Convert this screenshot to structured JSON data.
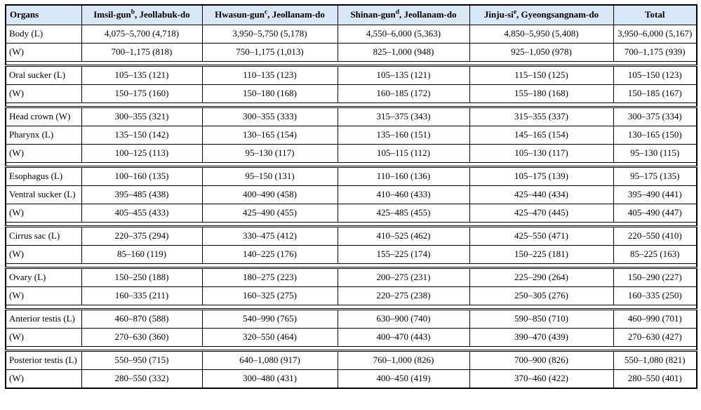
{
  "colors": {
    "header_bg": "#d9e7f6",
    "border": "#000000",
    "text": "#000000"
  },
  "table": {
    "header": {
      "organs": "Organs",
      "columns": [
        {
          "name": "Imsil-gun",
          "sup": "b",
          "region": ", Jeollabuk-do"
        },
        {
          "name": "Hwasun-gun",
          "sup": "c",
          "region": ", Jeollanam-do"
        },
        {
          "name": "Shinan-gun",
          "sup": "d",
          "region": ", Jeollanam-do"
        },
        {
          "name": "Jinju-si",
          "sup": "e",
          "region": ", Gyeongsangnam-do"
        }
      ],
      "total": "Total"
    },
    "groups": [
      {
        "rows": [
          {
            "organ": "Body (L)",
            "values": [
              "4,075–5,700 (4,718)",
              "3,950–5,750 (5,178)",
              "4,550–6,000 (5,363)",
              "4,850–5,950 (5,408)",
              "3,950–6,000 (5,167)"
            ]
          },
          {
            "organ": "(W)",
            "values": [
              "700–1,175 (818)",
              "750–1,175 (1,013)",
              "825–1,000 (948)",
              "925–1,050 (978)",
              "700–1,175 (939)"
            ]
          }
        ]
      },
      {
        "rows": [
          {
            "organ": "Oral sucker (L)",
            "values": [
              "105–135 (121)",
              "110–135 (123)",
              "105–135 (121)",
              "115–150 (125)",
              "105–150 (123)"
            ]
          },
          {
            "organ": "(W)",
            "values": [
              "150–175 (160)",
              "150–180 (168)",
              "160–185 (172)",
              "155–180 (168)",
              "150–185 (167)"
            ]
          }
        ]
      },
      {
        "rows": [
          {
            "organ": "Head crown (W)",
            "values": [
              "300–355 (321)",
              "300–355 (333)",
              "315–375 (343)",
              "315–355 (337)",
              "300–375 (334)"
            ]
          },
          {
            "organ": "Pharynx (L)",
            "values": [
              "135–150 (142)",
              "130–165 (154)",
              "135–160 (151)",
              "145–165 (154)",
              "130–165 (150)"
            ]
          },
          {
            "organ": "(W)",
            "values": [
              "100–125 (113)",
              "95–130 (117)",
              "105–115 (112)",
              "105–130 (117)",
              "95–130 (115)"
            ]
          }
        ]
      },
      {
        "rows": [
          {
            "organ": "Esophagus (L)",
            "values": [
              "100–160 (135)",
              "95–150 (131)",
              "110–160 (136)",
              "105–175 (139)",
              "95–175 (135)"
            ]
          },
          {
            "organ": "Ventral sucker (L)",
            "values": [
              "395–485 (438)",
              "400–490 (458)",
              "410–460 (433)",
              "425–440 (434)",
              "395–490 (441)"
            ]
          },
          {
            "organ": "(W)",
            "values": [
              "405–455 (433)",
              "425–490 (455)",
              "425–485 (455)",
              "425–470 (445)",
              "405–490 (447)"
            ]
          }
        ]
      },
      {
        "rows": [
          {
            "organ": "Cirrus sac (L)",
            "values": [
              "220–375 (294)",
              "330–475 (412)",
              "410–525 (462)",
              "425–550 (471)",
              "220–550 (410)"
            ]
          },
          {
            "organ": "(W)",
            "values": [
              "85–160 (119)",
              "140–225 (176)",
              "155–225 (174)",
              "150–225 (181)",
              "85–225 (163)"
            ]
          }
        ]
      },
      {
        "rows": [
          {
            "organ": "Ovary (L)",
            "values": [
              "150–250 (188)",
              "180–275 (223)",
              "200–275 (231)",
              "225–290 (264)",
              "150–290 (227)"
            ]
          },
          {
            "organ": "(W)",
            "values": [
              "160–335 (211)",
              "160–325 (275)",
              "220–275 (238)",
              "250–305 (276)",
              "160–335 (250)"
            ]
          }
        ]
      },
      {
        "rows": [
          {
            "organ": "Anterior testis (L)",
            "values": [
              "460–870 (588)",
              "540–990 (765)",
              "630–900 (740)",
              "590–850 (710)",
              "460–990 (701)"
            ]
          },
          {
            "organ": "(W)",
            "values": [
              "270–630 (360)",
              "320–550 (464)",
              "400–470 (443)",
              "390–470 (439)",
              "270–630 (427)"
            ]
          }
        ]
      },
      {
        "rows": [
          {
            "organ": "Posterior testis (L)",
            "values": [
              "550–950 (715)",
              "640–1,080 (917)",
              "760–1,000 (826)",
              "700–900 (826)",
              "550–1,080 (821)"
            ]
          },
          {
            "organ": "(W)",
            "values": [
              "280–550 (332)",
              "300–480 (431)",
              "400–450 (419)",
              "370–460 (422)",
              "280–550 (401)"
            ]
          }
        ]
      }
    ]
  }
}
